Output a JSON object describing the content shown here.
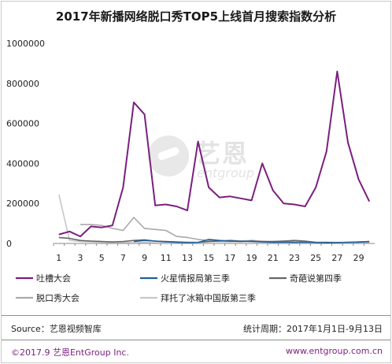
{
  "title": "2017年新播网络脱口秀TOP5上线首月搜索指数分析",
  "source_text": "Source：艺恩视频智库",
  "period_text": "统计周期：2017年1月1日-9月13日",
  "footer_left": "©2017.9  艺恩EntGroup Inc.",
  "footer_right": "www.entgroup.com.cn",
  "watermark": {
    "cn": "艺恩",
    "en": "entgroup"
  },
  "chart_data": {
    "type": "line",
    "x": [
      1,
      2,
      3,
      4,
      5,
      6,
      7,
      8,
      9,
      10,
      11,
      12,
      13,
      14,
      15,
      16,
      17,
      18,
      19,
      20,
      21,
      22,
      23,
      24,
      25,
      26,
      27,
      28,
      29,
      30
    ],
    "x_tick_labels": [
      "1",
      "3",
      "5",
      "7",
      "9",
      "11",
      "13",
      "15",
      "17",
      "19",
      "21",
      "23",
      "25",
      "27",
      "29"
    ],
    "x_ticks": [
      1,
      3,
      5,
      7,
      9,
      11,
      13,
      15,
      17,
      19,
      21,
      23,
      25,
      27,
      29
    ],
    "ylim": [
      0,
      1000000
    ],
    "y_ticks": [
      0,
      200000,
      400000,
      600000,
      800000,
      1000000
    ],
    "y_tick_labels": [
      "0",
      "200000",
      "400000",
      "600000",
      "800000",
      "1000000"
    ],
    "grid": false,
    "legend_position": "bottom",
    "series": [
      {
        "name": "吐槽大会",
        "color": "#7b1f7e",
        "width": 2,
        "values": [
          45000,
          60000,
          35000,
          85000,
          80000,
          90000,
          280000,
          705000,
          645000,
          190000,
          195000,
          185000,
          165000,
          510000,
          280000,
          230000,
          235000,
          225000,
          215000,
          400000,
          265000,
          200000,
          195000,
          185000,
          280000,
          460000,
          860000,
          505000,
          320000,
          210000
        ]
      },
      {
        "name": "火星情报局第三季",
        "color": "#1f5f9e",
        "width": 1.6,
        "values": [
          null,
          null,
          null,
          null,
          null,
          null,
          null,
          10000,
          15000,
          12000,
          8000,
          5000,
          4000,
          5000,
          20000,
          15000,
          12000,
          10000,
          12000,
          8000,
          5000,
          6000,
          5000,
          6000,
          4000,
          3000,
          4000,
          5000,
          6000,
          10000
        ]
      },
      {
        "name": "奇葩说第四季",
        "color": "#666666",
        "width": 1.6,
        "values": [
          30000,
          25000,
          15000,
          12000,
          10000,
          8000,
          10000,
          15000,
          18000,
          12000,
          10000,
          8000,
          6000,
          5000,
          10000,
          12000,
          15000,
          12000,
          10000,
          8000,
          10000,
          12000,
          15000,
          12000,
          6000,
          5000,
          4000,
          6000,
          8000,
          10000
        ]
      },
      {
        "name": "脱口秀大会",
        "color": "#a9a9a9",
        "width": 1.6,
        "values": [
          null,
          null,
          95000,
          95000,
          90000,
          75000,
          65000,
          130000,
          75000,
          70000,
          65000,
          35000,
          30000,
          20000,
          15000,
          12000,
          10000,
          12000,
          15000,
          12000,
          10000,
          12000,
          8000,
          6000,
          5000,
          6000,
          5000,
          6000,
          5000,
          5000
        ]
      },
      {
        "name": "拜托了冰箱中国版第三季",
        "color": "#c8c8c8",
        "width": 1.6,
        "values": [
          245000,
          15000,
          10000,
          8000,
          6000,
          5000,
          5000,
          4000,
          5000,
          4000,
          3000,
          3000,
          4000,
          3000,
          3000,
          3000,
          3000,
          3000,
          3000,
          4000,
          3000,
          3000,
          3000,
          3000,
          3000,
          3000,
          3000,
          3000,
          3000,
          4000
        ]
      }
    ]
  }
}
